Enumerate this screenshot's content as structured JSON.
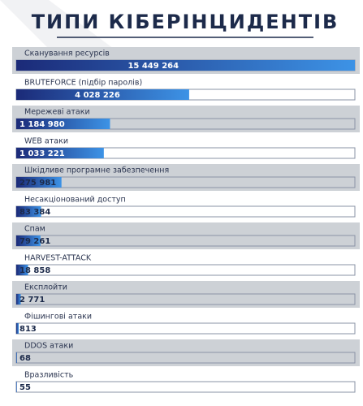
{
  "chart_data": {
    "type": "bar",
    "orientation": "horizontal",
    "scale": "sqrt",
    "title": "ТИПИ КІБЕРІНЦИДЕНТІВ",
    "categories": [
      "Сканування ресурсів",
      "BRUTEFORCE (підбір паролів)",
      "Мережеві атаки",
      "WEB атаки",
      "Шкідливе програмне забезпечення",
      "Несакціонований доступ",
      "Спам",
      "HARVEST-ATTACK",
      "Експлойти",
      "Фішингові атаки",
      "DDOS атаки",
      "Вразливість"
    ],
    "values": [
      15449264,
      4028226,
      1184980,
      1033221,
      275981,
      83384,
      79261,
      18858,
      2771,
      813,
      68,
      55
    ],
    "value_labels": [
      "15 449 264",
      "4 028 226",
      "1 184 980",
      "1 033 221",
      "275 981",
      "83 384",
      "79 261",
      "18 858",
      "2 771",
      "813",
      "68",
      "55"
    ],
    "xlim": [
      0,
      15449264
    ],
    "color_start": "#1b2a78",
    "color_end": "#3d93e6"
  }
}
